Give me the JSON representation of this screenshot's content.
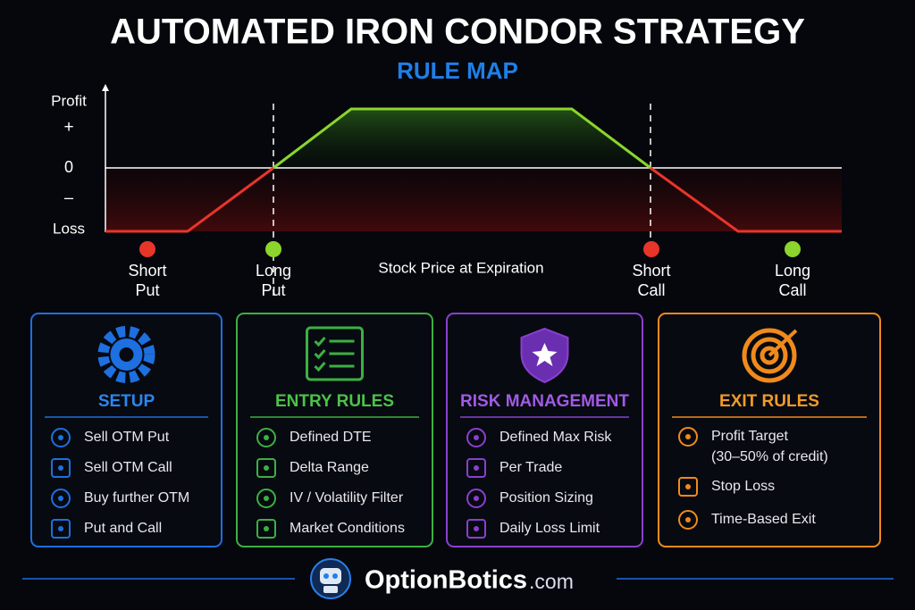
{
  "header": {
    "title": "AUTOMATED IRON CONDOR STRATEGY",
    "subtitle": "RULE MAP"
  },
  "payoff": {
    "y_labels": [
      "Profit",
      "+",
      "0",
      "–",
      "Loss"
    ],
    "x_label": "Stock Price at Expiration",
    "strikes": [
      {
        "lines": [
          "Short",
          "Put"
        ]
      },
      {
        "lines": [
          "Long",
          "Put"
        ]
      },
      {
        "lines": [
          "Short",
          "Call"
        ]
      },
      {
        "lines": [
          "Long",
          "Call"
        ]
      }
    ]
  },
  "cards": [
    {
      "title": "SETUP",
      "items": [
        "Sell OTM Put",
        "Sell OTM Call",
        "Buy further OTM",
        "Put and Call"
      ]
    },
    {
      "title": "ENTRY RULES",
      "items": [
        "Defined DTE",
        "Delta Range",
        "IV / Volatility Filter",
        "Market Conditions"
      ]
    },
    {
      "title": "RISK MANAGEMENT",
      "items": [
        "Defined Max Risk",
        "Per Trade",
        "Position Sizing",
        "Daily Loss Limit"
      ]
    },
    {
      "title": "EXIT RULES",
      "items": [
        "Profit Target",
        "Stop Loss",
        "Time-Based Exit"
      ],
      "note": "(30–50% of credit)"
    }
  ],
  "footer": {
    "brand": "OptionBotics",
    "domain": ".com"
  }
}
